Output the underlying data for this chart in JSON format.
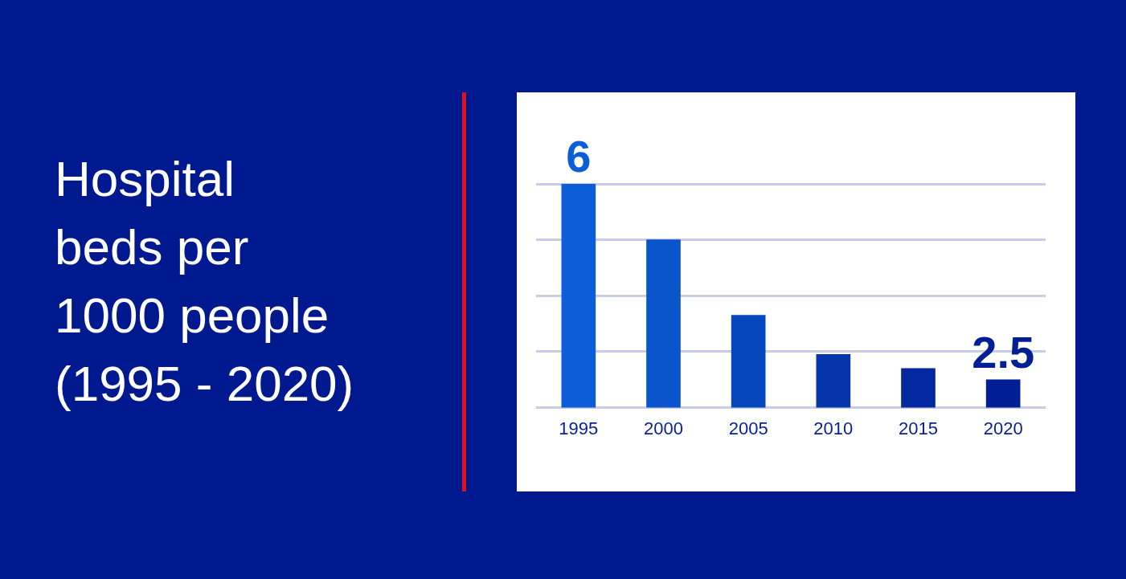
{
  "chart_data": {
    "type": "bar",
    "title": "Hospital\nbeds per\n1000 people\n(1995 - 2020)",
    "categories": [
      "1995",
      "2000",
      "2005",
      "2010",
      "2015",
      "2020"
    ],
    "values": [
      6,
      5,
      3.65,
      2.95,
      2.7,
      2.5
    ],
    "colors": [
      "#0b5ed7",
      "#0a55cc",
      "#0747bd",
      "#0535aa",
      "#03289f",
      "#021e95"
    ],
    "value_labels": [
      "6",
      null,
      null,
      null,
      null,
      "2.5"
    ],
    "ylim": [
      2,
      6
    ],
    "yticks": [
      {
        "value": 2,
        "label": null
      },
      {
        "value": 3,
        "label": null
      },
      {
        "value": 4,
        "label": null
      },
      {
        "value": 5,
        "label": null
      },
      {
        "value": 6,
        "label": null
      }
    ],
    "grid": "y",
    "tick_labels": "x"
  }
}
